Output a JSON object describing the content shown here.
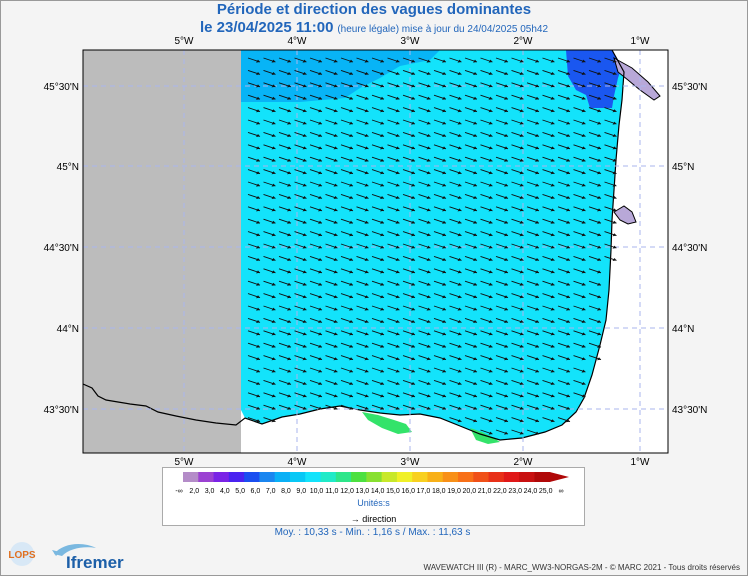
{
  "title": {
    "line1": "Période et direction des vagues dominantes",
    "date": "le 23/04/2025 11:00",
    "note": "(heure légale) mise à jour du 24/04/2025 05h42"
  },
  "map": {
    "lon_labels": [
      "5°W",
      "4°W",
      "3°W",
      "2°W",
      "1°W"
    ],
    "lat_labels": [
      "45°30'N",
      "45°N",
      "44°30'N",
      "44°N",
      "43°30'N"
    ],
    "colors": {
      "land": "#ffffff",
      "no_data": "#bcbcbc",
      "sea_cyan": "#13e3fb",
      "sea_blue": "#08b4f6",
      "sea_darkblue": "#1a57f0",
      "sea_green": "#33e36a",
      "grid": "#aab6ee",
      "estuary": "#b8a8d8"
    }
  },
  "legend": {
    "tick_labels": [
      "-∞",
      "2,0",
      "3,0",
      "4,0",
      "5,0",
      "6,0",
      "7,0",
      "8,0",
      "9,0",
      "10,0",
      "11,0",
      "12,0",
      "13,0",
      "14,0",
      "15,0",
      "16,0",
      "17,0",
      "18,0",
      "19,0",
      "20,0",
      "21,0",
      "22,0",
      "23,0",
      "24,0",
      "25,0",
      "∞"
    ],
    "colors": [
      "#b48cc8",
      "#9b42d2",
      "#7a23e6",
      "#4a23f0",
      "#1a4ef0",
      "#1a86f0",
      "#0ab0f6",
      "#08c8f6",
      "#13e3fb",
      "#20eac8",
      "#2ee68a",
      "#4ce040",
      "#88e030",
      "#c8e82a",
      "#f0f028",
      "#f8d020",
      "#f8b018",
      "#f89018",
      "#f87018",
      "#f05018",
      "#e83018",
      "#e01818",
      "#c81010",
      "#b00808"
    ],
    "unit": "Unités:s",
    "direction_label": "direction"
  },
  "stats": "Moy. : 10,33 s   -   Min. : 1,16 s / Max. : 11,63 s",
  "footer": "WAVEWATCH III (R) - MARC_WW3-NORGAS-2M - © MARC 2021 - Tous droits réservés",
  "logo": {
    "lops": "LOPS",
    "ifremer": "Ifremer"
  }
}
